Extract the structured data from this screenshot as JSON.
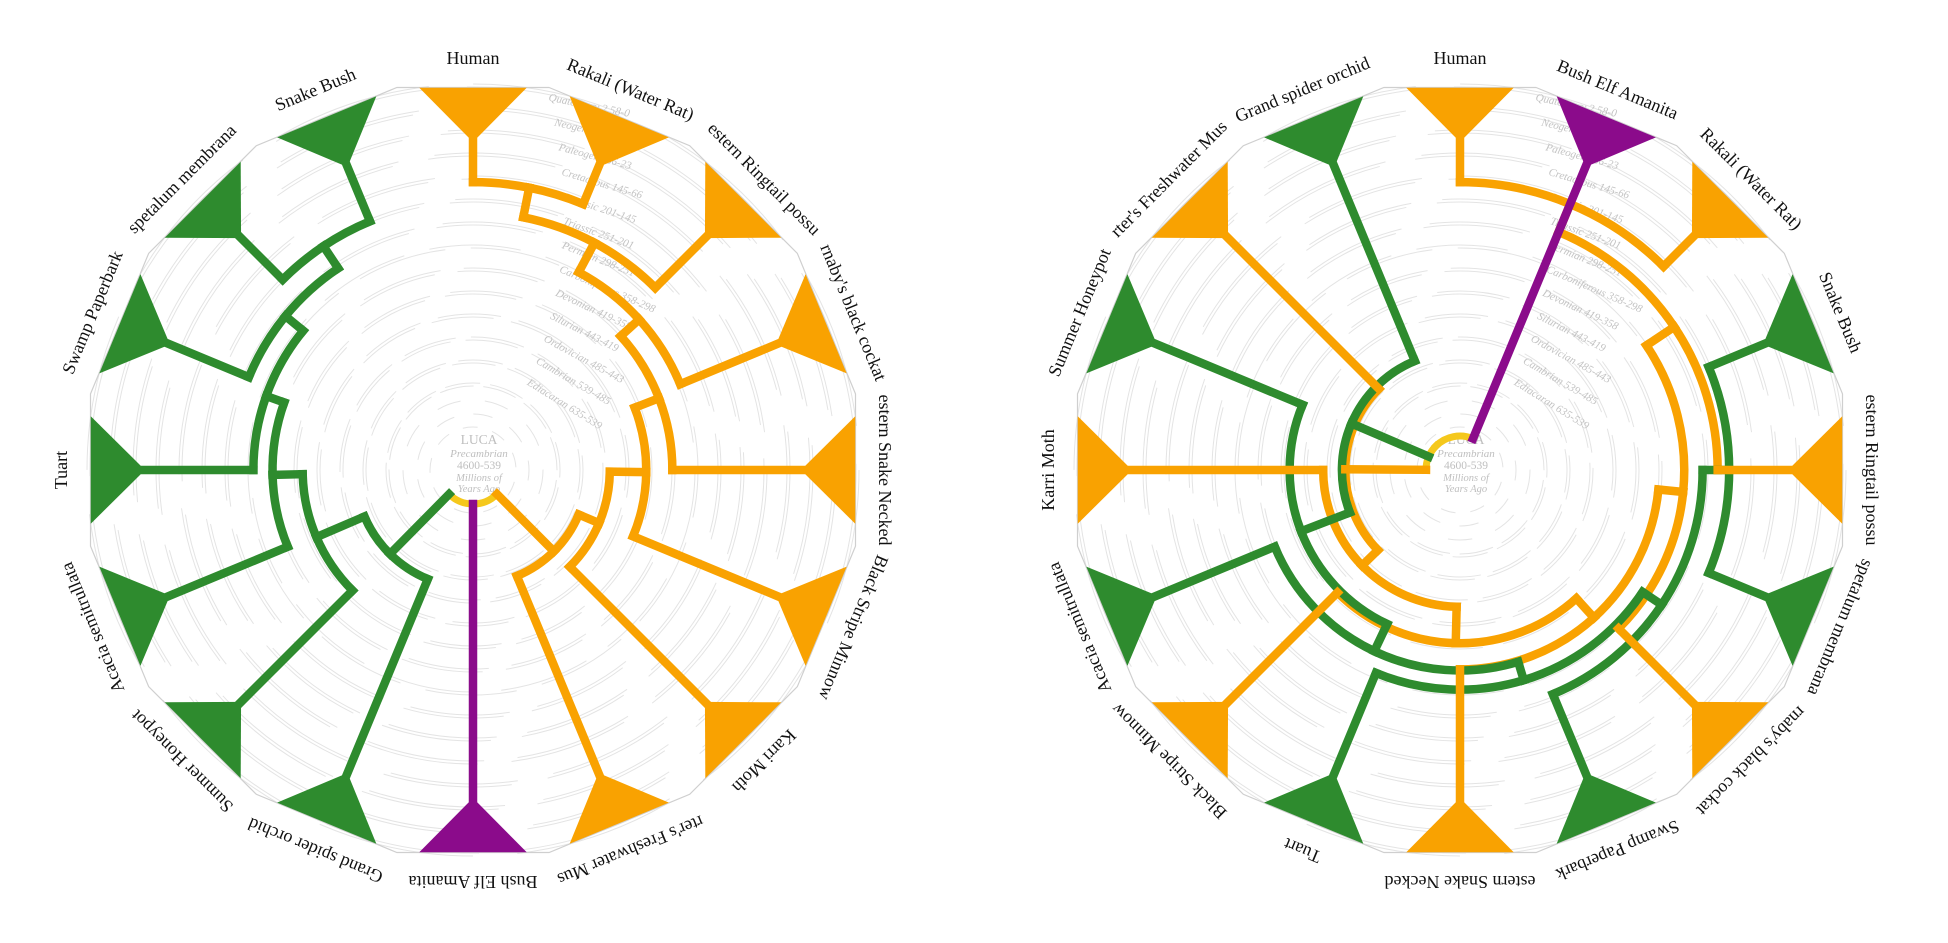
{
  "figure_type": "circular_phylogenetic_tree_comparison",
  "palette": {
    "animal": "#F9A201",
    "plant": "#2E8B2E",
    "fungus": "#8B0B8B",
    "root_node": "#F5C81C",
    "ring_line": "#E4E4E4",
    "ring_label": "#C3C3C3",
    "center_label": "#BFBFBF",
    "rim": "#CFCFCF",
    "leaf_label": "#111111",
    "background": "#FFFFFF"
  },
  "center_label": {
    "lines": [
      "LUCA",
      "Precambrian",
      "4600-539",
      "Millions of",
      "Years Ago"
    ]
  },
  "geologic_rings": [
    {
      "label": "Quaternary 2.58-0",
      "young": 0,
      "old": 2.58
    },
    {
      "label": "Neogene 23-2.58",
      "young": 2.58,
      "old": 23
    },
    {
      "label": "Paleogene 66-23",
      "young": 23,
      "old": 66
    },
    {
      "label": "Cretaceous 145-66",
      "young": 66,
      "old": 145
    },
    {
      "label": "Jurassic 201-145",
      "young": 145,
      "old": 201
    },
    {
      "label": "Triassic 251-201",
      "young": 201,
      "old": 251
    },
    {
      "label": "Permian 298-251",
      "young": 251,
      "old": 298
    },
    {
      "label": "Carboniferous 358-298",
      "young": 298,
      "old": 358
    },
    {
      "label": "Devonian 419-358",
      "young": 358,
      "old": 419
    },
    {
      "label": "Silurian 443-419",
      "young": 419,
      "old": 443
    },
    {
      "label": "Ordovician 485-443",
      "young": 443,
      "old": 485
    },
    {
      "label": "Cambrian 539-485",
      "young": 485,
      "old": 539
    },
    {
      "label": "Ediacaran 635-539",
      "young": 539,
      "old": 635
    }
  ],
  "leaves": {
    "human": {
      "label": "Human",
      "kingdom": "animal"
    },
    "rakali": {
      "label": "Rakali (Water Rat)",
      "kingdom": "animal"
    },
    "ringtail": {
      "label": "estern Ringtail possu",
      "kingdom": "animal"
    },
    "cockatoo": {
      "label": "rnaby's black cockat",
      "kingdom": "animal"
    },
    "snakenecked": {
      "label": "estern Snake Necked",
      "kingdom": "animal"
    },
    "minnow": {
      "label": "Black Stripe Minnow",
      "kingdom": "animal"
    },
    "karrimoth": {
      "label": "Karri Moth",
      "kingdom": "animal"
    },
    "mussel": {
      "label": "rter's Freshwater Mus",
      "kingdom": "animal"
    },
    "amanita": {
      "label": "Bush Elf Amanita",
      "kingdom": "fungus"
    },
    "orchid": {
      "label": "Grand spider orchid",
      "kingdom": "plant"
    },
    "honeypot": {
      "label": "Summer Honeypot",
      "kingdom": "plant"
    },
    "acacia": {
      "label": "Acacia semitrullata",
      "kingdom": "plant"
    },
    "tuart": {
      "label": "Tuart",
      "kingdom": "plant"
    },
    "paperbark": {
      "label": "Swamp Paperbark",
      "kingdom": "plant"
    },
    "spetalum": {
      "label": "spetalum membrana",
      "kingdom": "plant"
    },
    "snakebush": {
      "label": "Snake Bush",
      "kingdom": "plant"
    }
  },
  "tree": {
    "age": 1200,
    "children": [
      {
        "clade": "animal",
        "age": 528,
        "children": [
          {
            "age": 478,
            "children": [
              {
                "age": 425,
                "children": [
                  {
                    "age": 365,
                    "children": [
                      {
                        "age": 300,
                        "children": [
                          {
                            "age": 230,
                            "children": [
                              {
                                "age": 160,
                                "children": [
                                  {
                                    "leaf": "human"
                                  },
                                  {
                                    "leaf": "rakali"
                                  }
                                ]
                              },
                              {
                                "leaf": "ringtail"
                              }
                            ]
                          },
                          {
                            "leaf": "cockatoo"
                          }
                        ]
                      },
                      {
                        "leaf": "snakenecked"
                      }
                    ]
                  },
                  {
                    "leaf": "minnow"
                  }
                ]
              },
              {
                "leaf": "karrimoth"
              }
            ]
          },
          {
            "leaf": "mussel"
          }
        ]
      },
      {
        "clade": "fungus",
        "leaf": "amanita"
      },
      {
        "clade": "plant",
        "age": 520,
        "children": [
          {
            "age": 428,
            "children": [
              {
                "age": 362,
                "children": [
                  {
                    "age": 312,
                    "children": [
                      {
                        "age": 262,
                        "children": [
                          {
                            "age": 205,
                            "children": [
                              {
                                "leaf": "snakebush"
                              },
                              {
                                "leaf": "spetalum"
                              }
                            ]
                          },
                          {
                            "leaf": "paperbark"
                          }
                        ]
                      },
                      {
                        "leaf": "tuart"
                      }
                    ]
                  },
                  {
                    "leaf": "acacia"
                  }
                ]
              },
              {
                "leaf": "honeypot"
              }
            ]
          },
          {
            "leaf": "orchid"
          }
        ]
      }
    ]
  },
  "diagrams": [
    {
      "id": "left",
      "leaf_order": [
        "human",
        "rakali",
        "ringtail",
        "cockatoo",
        "snakenecked",
        "minnow",
        "karrimoth",
        "mussel",
        "amanita",
        "orchid",
        "honeypot",
        "acacia",
        "tuart",
        "paperbark",
        "spetalum",
        "snakebush"
      ]
    },
    {
      "id": "right",
      "leaf_order": [
        "human",
        "amanita",
        "rakali",
        "snakebush",
        "ringtail",
        "spetalum",
        "cockatoo",
        "paperbark",
        "snakenecked",
        "tuart",
        "minnow",
        "acacia",
        "karrimoth",
        "honeypot",
        "mussel",
        "orchid"
      ]
    }
  ]
}
